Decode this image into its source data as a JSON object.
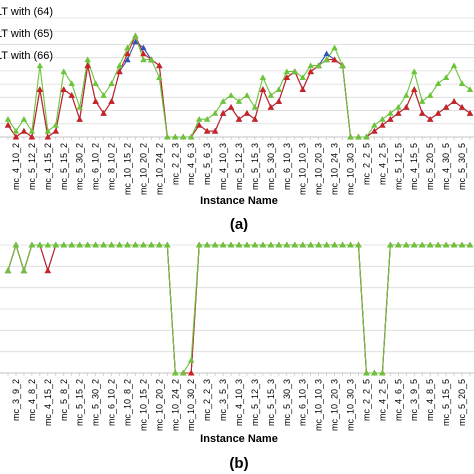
{
  "chart_data": [
    {
      "type": "line",
      "panel_label": "(a)",
      "xlabel": "Instance Name",
      "legend_entries": [
        "LT with (64)",
        "LT with (65)",
        "LT with (66)"
      ],
      "x_tick_labels": [
        "mc_4_10_2",
        "mc_5_12_2",
        "mc_4_15_2",
        "mc_5_15_2",
        "mc_5_30_2",
        "mc_6_10_2",
        "mc_8_10_2",
        "mc_10_15_2",
        "mc_10_20_2",
        "mc_10_24_2",
        "mc_2_2_3",
        "mc_4_6_3",
        "mc_5_6_3",
        "mc_4_10_3",
        "mc_5_12_3",
        "mc_5_15_3",
        "mc_5_30_3",
        "mc_6_10_3",
        "mc_10_10_3",
        "mc_10_20_3",
        "mc_10_24_3",
        "mc_10_30_3",
        "mc_2_2_5",
        "mc_4_2_5",
        "mc_5_12_5",
        "mc_4_15_5",
        "mc_5_20_5",
        "mc_4_30_5",
        "mc_5_30_5"
      ],
      "x": [
        0,
        1,
        2,
        3,
        4,
        5,
        6,
        7,
        8,
        9,
        10,
        11,
        12,
        13,
        14,
        15,
        16,
        17,
        18,
        19,
        20,
        21,
        22,
        23,
        24,
        25,
        26,
        27,
        28,
        29,
        30,
        31,
        32,
        33,
        34,
        35,
        36,
        37,
        38,
        39,
        40,
        41,
        42,
        43,
        44,
        45,
        46,
        47,
        48,
        49,
        50,
        51,
        52,
        53,
        54,
        55,
        56,
        57,
        58
      ],
      "ylim": [
        0,
        20
      ],
      "series": [
        {
          "name": "LT with (64)",
          "color": "#2f55b5",
          "marker": "triangle",
          "values": [
            2,
            0,
            1,
            0,
            8,
            0,
            1,
            8,
            7,
            3,
            12,
            6,
            4,
            6,
            11,
            13,
            16,
            15,
            13,
            12,
            0,
            0,
            0,
            0,
            2,
            1,
            1,
            4,
            5,
            3,
            4,
            3,
            8,
            5,
            6,
            10,
            11,
            8,
            11,
            12,
            14,
            13,
            12,
            0,
            0,
            0,
            1,
            2,
            3,
            4,
            5,
            8,
            4,
            3,
            4,
            5,
            6,
            5,
            4
          ]
        },
        {
          "name": "LT with (65)",
          "color": "#cc2222",
          "marker": "triangle",
          "values": [
            2,
            0,
            1,
            0,
            8,
            0,
            1,
            8,
            7,
            3,
            12,
            6,
            4,
            6,
            11,
            14,
            17,
            14,
            13,
            12,
            0,
            0,
            0,
            0,
            2,
            1,
            1,
            4,
            5,
            3,
            4,
            3,
            8,
            5,
            6,
            10,
            11,
            8,
            11,
            12,
            13,
            13,
            12,
            0,
            0,
            0,
            1,
            2,
            3,
            4,
            5,
            8,
            4,
            3,
            4,
            5,
            6,
            5,
            4
          ]
        },
        {
          "name": "LT with (66)",
          "color": "#6cc43a",
          "marker": "triangle",
          "values": [
            3,
            1,
            3,
            1,
            12,
            1,
            2,
            11,
            9,
            5,
            13,
            9,
            7,
            9,
            12,
            15,
            17,
            13,
            13,
            10,
            0,
            0,
            0,
            0,
            3,
            3,
            4,
            6,
            7,
            6,
            7,
            5,
            10,
            7,
            8,
            11,
            11,
            10,
            12,
            12,
            13,
            15,
            12,
            0,
            0,
            0,
            2,
            3,
            4,
            5,
            7,
            11,
            6,
            7,
            9,
            10,
            12,
            9,
            8
          ]
        }
      ]
    },
    {
      "type": "line",
      "panel_label": "(b)",
      "xlabel": "Instance Name",
      "x_tick_labels": [
        "mc_3_9_2",
        "mc_4_8_2",
        "mc_4_15_2",
        "mc_5_8_2",
        "mc_5_15_2",
        "mc_5_30_2",
        "mc_6_10_2",
        "mc_10_8_2",
        "mc_10_15_2",
        "mc_10_20_2",
        "mc_10_24_2",
        "mc_10_30_2",
        "mc_2_2_3",
        "mc_3_5_3",
        "mc_4_10_3",
        "mc_5_12_3",
        "mc_5_15_3",
        "mc_5_30_3",
        "mc_6_10_3",
        "mc_10_10_3",
        "mc_10_20_3",
        "mc_10_30_3",
        "mc_2_2_5",
        "mc_4_2_5",
        "mc_4_6_5",
        "mc_3_9_5",
        "mc_4_8_5",
        "mc_5_15_5",
        "mc_5_20_5"
      ],
      "x": [
        0,
        1,
        2,
        3,
        4,
        5,
        6,
        7,
        8,
        9,
        10,
        11,
        12,
        13,
        14,
        15,
        16,
        17,
        18,
        19,
        20,
        21,
        22,
        23,
        24,
        25,
        26,
        27,
        28,
        29,
        30,
        31,
        32,
        33,
        34,
        35,
        36,
        37,
        38,
        39,
        40,
        41,
        42,
        43,
        44,
        45,
        46,
        47,
        48,
        49,
        50,
        51,
        52,
        53,
        54,
        55,
        56,
        57,
        58
      ],
      "ylim": [
        0,
        1
      ],
      "series": [
        {
          "name": "LT with (64)",
          "color": "#2f55b5",
          "marker": "triangle",
          "values": [
            0.8,
            1,
            0.8,
            1,
            1,
            0.8,
            1,
            1,
            1,
            1,
            1,
            1,
            1,
            1,
            1,
            1,
            1,
            1,
            1,
            1,
            1,
            0,
            0,
            0,
            1,
            1,
            1,
            1,
            1,
            1,
            1,
            1,
            1,
            1,
            1,
            1,
            1,
            1,
            1,
            1,
            1,
            1,
            1,
            1,
            1,
            0,
            0,
            0,
            1,
            1,
            1,
            1,
            1,
            1,
            1,
            1,
            1,
            1,
            1
          ]
        },
        {
          "name": "LT with (65)",
          "color": "#cc2222",
          "marker": "triangle",
          "values": [
            0.8,
            1,
            0.8,
            1,
            1,
            0.8,
            1,
            1,
            1,
            1,
            1,
            1,
            1,
            1,
            1,
            1,
            1,
            1,
            1,
            1,
            1,
            0,
            0,
            0,
            1,
            1,
            1,
            1,
            1,
            1,
            1,
            1,
            1,
            1,
            1,
            1,
            1,
            1,
            1,
            1,
            1,
            1,
            1,
            1,
            1,
            0,
            0,
            0,
            1,
            1,
            1,
            1,
            1,
            1,
            1,
            1,
            1,
            1,
            1
          ]
        },
        {
          "name": "LT with (66)",
          "color": "#6cc43a",
          "marker": "triangle",
          "values": [
            0.8,
            1,
            0.8,
            1,
            1,
            1,
            1,
            1,
            1,
            1,
            1,
            1,
            1,
            1,
            1,
            1,
            1,
            1,
            1,
            1,
            1,
            0,
            0,
            0.1,
            1,
            1,
            1,
            1,
            1,
            1,
            1,
            1,
            1,
            1,
            1,
            1,
            1,
            1,
            1,
            1,
            1,
            1,
            1,
            1,
            1,
            0,
            0,
            0,
            1,
            1,
            1,
            1,
            1,
            1,
            1,
            1,
            1,
            1,
            1
          ]
        }
      ]
    }
  ]
}
